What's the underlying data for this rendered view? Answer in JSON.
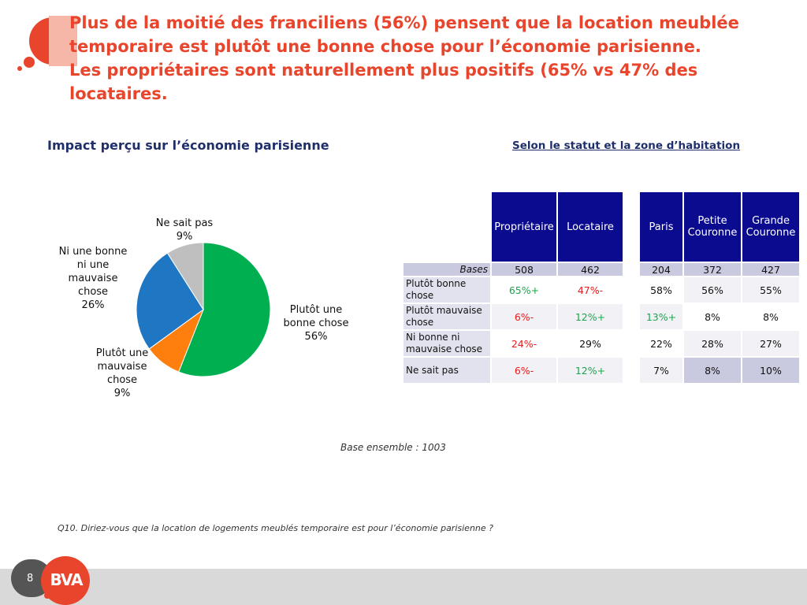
{
  "slide": {
    "title_lines": [
      "Plus de la moitié des franciliens  (56%) pensent que la location meublée",
      "temporaire est plutôt une  bonne chose pour l’économie parisienne.",
      "Les propriétaires sont naturellement plus positifs (65% vs 47% des",
      "locataires."
    ],
    "chart_heading": "Impact perçu sur l’économie parisienne",
    "table_heading": "Selon le statut et la zone d’habitation",
    "base_note": "Base ensemble : 1003",
    "question": "Q10. Diriez-vous que la location de logements meublés temporaire est pour l’économie parisienne ?",
    "page_number": "8",
    "logo_text": "BVA",
    "colors": {
      "accent": "#e8452c",
      "header_fill": "#0b0b8f",
      "positive": "#1aa64b",
      "negative": "#e8191e"
    }
  },
  "chart_data": {
    "type": "pie",
    "slices": [
      {
        "label_lines": [
          "Plutôt une",
          "bonne chose"
        ],
        "value": 56,
        "value_label": "56%",
        "color": "#00b050"
      },
      {
        "label_lines": [
          "Plutôt une",
          "mauvaise",
          "chose"
        ],
        "value": 9,
        "value_label": "9%",
        "color": "#ff7f0e"
      },
      {
        "label_lines": [
          "Ni une bonne",
          "ni une",
          "mauvaise",
          "chose"
        ],
        "value": 26,
        "value_label": "26%",
        "color": "#1f77c4"
      },
      {
        "label_lines": [
          "Ne sait pas"
        ],
        "value": 9,
        "value_label": "9%",
        "color": "#bfbfbf"
      }
    ]
  },
  "table": {
    "group1_headers": [
      "Propriétaire",
      "Locataire"
    ],
    "group2_headers": [
      "Paris",
      "Petite Couronne",
      "Grande Couronne"
    ],
    "bases_label": "Bases",
    "bases": {
      "group1": [
        "508",
        "462"
      ],
      "group2": [
        "204",
        "372",
        "427"
      ]
    },
    "rows": [
      {
        "label": "Plutôt bonne chose",
        "group1": [
          {
            "v": "65%+",
            "c": "green"
          },
          {
            "v": "47%-",
            "c": "red"
          }
        ],
        "group2": [
          {
            "v": "58%",
            "c": ""
          },
          {
            "v": "56%",
            "c": ""
          },
          {
            "v": "55%",
            "c": ""
          }
        ]
      },
      {
        "label": "Plutôt mauvaise chose",
        "group1": [
          {
            "v": "6%-",
            "c": "red"
          },
          {
            "v": "12%+",
            "c": "green"
          }
        ],
        "group2": [
          {
            "v": "13%+",
            "c": "green"
          },
          {
            "v": "8%",
            "c": ""
          },
          {
            "v": "8%",
            "c": ""
          }
        ]
      },
      {
        "label": "Ni bonne ni mauvaise chose",
        "group1": [
          {
            "v": "24%-",
            "c": "red"
          },
          {
            "v": "29%",
            "c": ""
          }
        ],
        "group2": [
          {
            "v": "22%",
            "c": ""
          },
          {
            "v": "28%",
            "c": ""
          },
          {
            "v": "27%",
            "c": ""
          }
        ]
      },
      {
        "label": "Ne sait pas",
        "group1": [
          {
            "v": "6%-",
            "c": "red"
          },
          {
            "v": "12%+",
            "c": "green"
          }
        ],
        "group2": [
          {
            "v": "7%",
            "c": ""
          },
          {
            "v": "8%",
            "c": ""
          },
          {
            "v": "10%",
            "c": ""
          }
        ]
      }
    ]
  }
}
